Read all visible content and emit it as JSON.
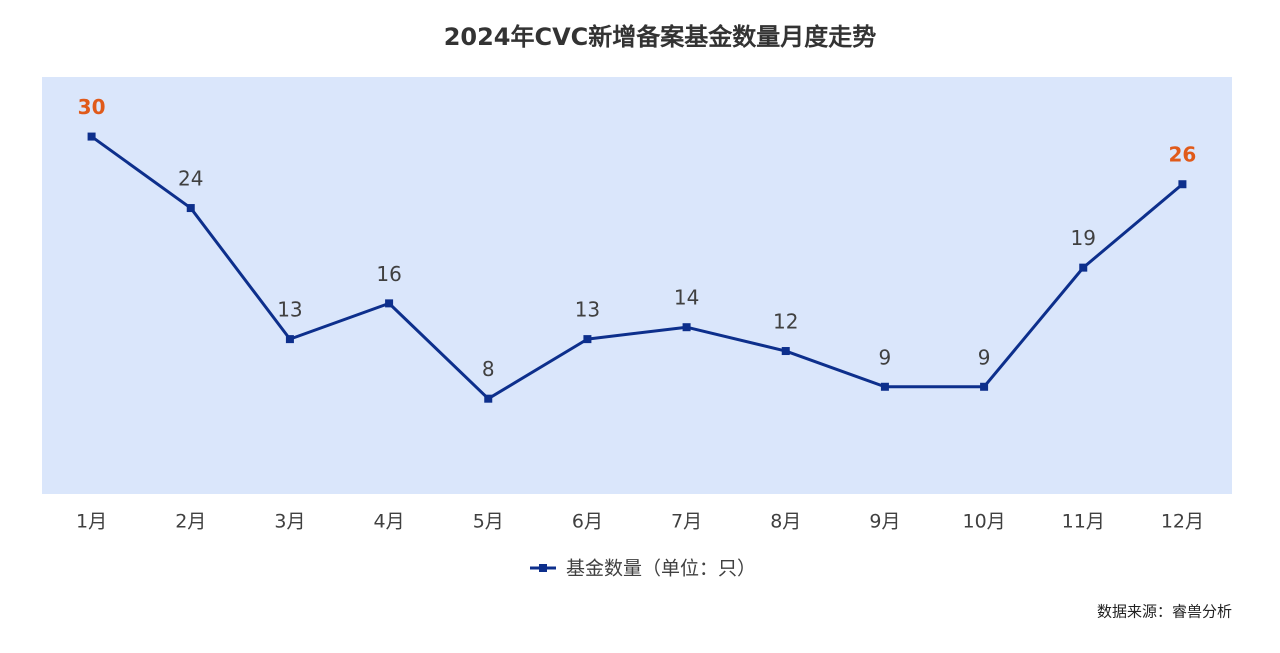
{
  "chart_data": {
    "type": "line",
    "title": "2024年CVC新增备案基金数量月度走势",
    "categories": [
      "1月",
      "2月",
      "3月",
      "4月",
      "5月",
      "6月",
      "7月",
      "8月",
      "9月",
      "10月",
      "11月",
      "12月"
    ],
    "series": [
      {
        "name": "基金数量（单位：只）",
        "color": "#0d2f8c",
        "values": [
          30,
          24,
          13,
          16,
          8,
          13,
          14,
          12,
          9,
          9,
          19,
          26
        ]
      }
    ],
    "ylim": [
      0,
      35
    ],
    "plot_background": "#dae6fb",
    "highlight_indices": [
      0,
      11
    ],
    "highlight_color": "#e05a1a",
    "source": "数据来源：睿兽分析"
  }
}
